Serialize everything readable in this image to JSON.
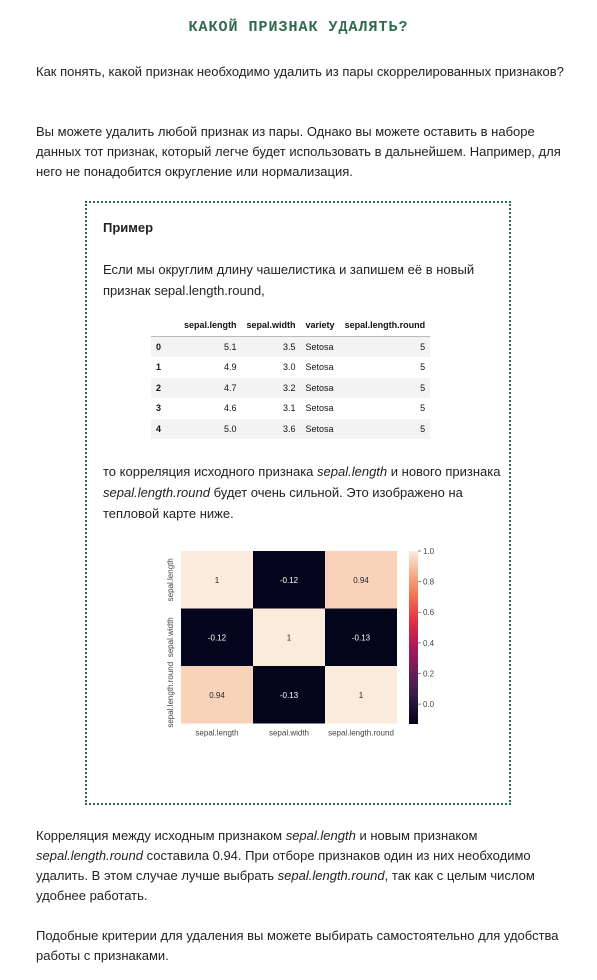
{
  "page": {
    "title": "КАКОЙ ПРИЗНАК УДАЛЯТЬ?",
    "question": "Как понять, какой признак необходимо удалить из пары скоррелированных признаков?",
    "answer": "Вы можете удалить любой признак из пары. Однако вы можете оставить в наборе данных тот признак, который легче будет использовать в дальнейшем. Например, для него не понадобится округление или нормализация."
  },
  "example": {
    "heading": "Пример",
    "intro": "Если мы округлим длину чашелистика и запишем её в новый признак sepal.length.round,",
    "after_table_1": "то корреляция исходного признака ",
    "after_table_feat1": "sepal.length",
    "after_table_2": " и нового признака ",
    "after_table_feat2": "sepal.length.round",
    "after_table_3": " будет очень сильной. Это изображено на тепловой карте ниже."
  },
  "table": {
    "columns": [
      "",
      "sepal.length",
      "sepal.width",
      "variety",
      "sepal.length.round"
    ],
    "rows": [
      {
        "index": "0",
        "sepal_length": "5.1",
        "sepal_width": "3.5",
        "variety": "Setosa",
        "round": "5"
      },
      {
        "index": "1",
        "sepal_length": "4.9",
        "sepal_width": "3.0",
        "variety": "Setosa",
        "round": "5"
      },
      {
        "index": "2",
        "sepal_length": "4.7",
        "sepal_width": "3.2",
        "variety": "Setosa",
        "round": "5"
      },
      {
        "index": "3",
        "sepal_length": "4.6",
        "sepal_width": "3.1",
        "variety": "Setosa",
        "round": "5"
      },
      {
        "index": "4",
        "sepal_length": "5.0",
        "sepal_width": "3.6",
        "variety": "Setosa",
        "round": "5"
      }
    ]
  },
  "chart_data": {
    "type": "heatmap",
    "x_labels": [
      "sepal.length",
      "sepal.width",
      "sepal.length.round"
    ],
    "y_labels": [
      "sepal.length",
      "sepal.width",
      "sepal.length.round"
    ],
    "values": [
      [
        1,
        -0.12,
        0.94
      ],
      [
        -0.12,
        1,
        -0.13
      ],
      [
        0.94,
        -0.13,
        1
      ]
    ],
    "cell_labels": [
      [
        "1",
        "-0.12",
        "0.94"
      ],
      [
        "-0.12",
        "1",
        "-0.13"
      ],
      [
        "0.94",
        "-0.13",
        "1"
      ]
    ],
    "colorbar_ticks": [
      "1.0",
      "0.8",
      "0.6",
      "0.4",
      "0.2",
      "0.0"
    ],
    "colorbar_range": [
      -0.13,
      1.0
    ],
    "colormap": "rocket"
  },
  "conclusion": {
    "p1_a": "Корреляция между исходным признаком ",
    "p1_feat1": "sepal.length",
    "p1_b": " и новым признаком ",
    "p1_feat2": "sepal.length.round",
    "p1_c": " составила 0.94. При отборе признаков один из них необходимо удалить. В этом случае лучше выбрать ",
    "p1_feat3": "sepal.length.round",
    "p1_d": ", так как с целым числом удобнее работать.",
    "p2": "Подобные критерии для удаления вы можете выбирать самостоятельно для удобства работы с признаками."
  }
}
